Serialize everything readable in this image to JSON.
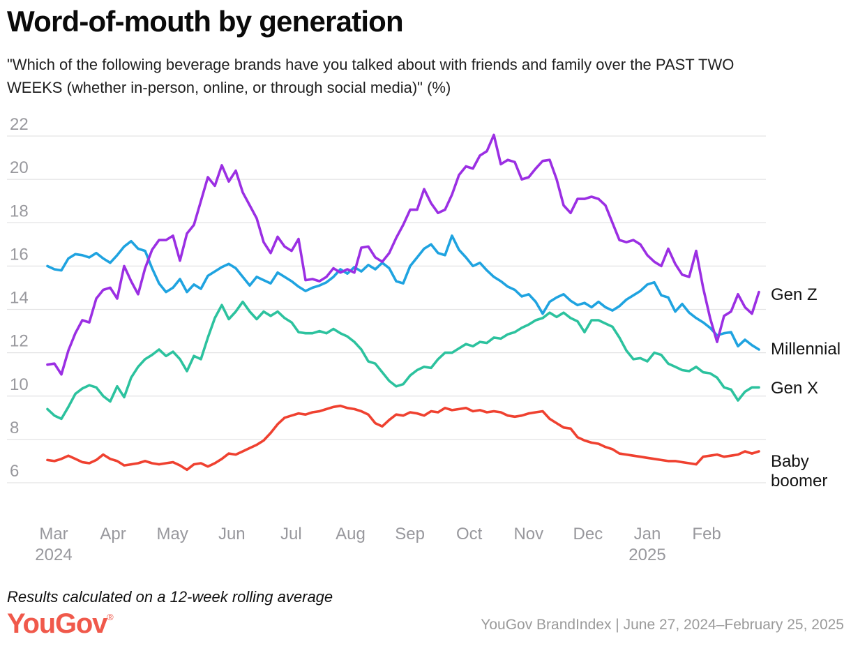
{
  "header": {
    "title": "Word-of-mouth by generation",
    "subtitle_line1": "\"Which of the following beverage brands have you talked about with friends and family over the PAST TWO",
    "subtitle_line2": "WEEKS (whether in-person, online, or through social media)\" (%)"
  },
  "chart_data": {
    "type": "line",
    "unit": "%",
    "grid": true,
    "legend_position": "right-edge-labels",
    "ylim": [
      6,
      22
    ],
    "yticks": [
      6,
      8,
      10,
      12,
      14,
      16,
      18,
      20,
      22
    ],
    "x_axis": {
      "ticks": [
        {
          "label": "Mar",
          "sublabel": "2024"
        },
        {
          "label": "Apr",
          "sublabel": ""
        },
        {
          "label": "May",
          "sublabel": ""
        },
        {
          "label": "Jun",
          "sublabel": ""
        },
        {
          "label": "Jul",
          "sublabel": ""
        },
        {
          "label": "Aug",
          "sublabel": ""
        },
        {
          "label": "Sep",
          "sublabel": ""
        },
        {
          "label": "Oct",
          "sublabel": ""
        },
        {
          "label": "Nov",
          "sublabel": ""
        },
        {
          "label": "Dec",
          "sublabel": ""
        },
        {
          "label": "Jan",
          "sublabel": "2025"
        },
        {
          "label": "Feb",
          "sublabel": ""
        }
      ]
    },
    "series": [
      {
        "name": "Gen Z",
        "color": "#9b2fe3",
        "values": [
          11.45,
          11.5,
          11.0,
          12.1,
          12.9,
          13.5,
          13.4,
          14.5,
          14.9,
          15.0,
          14.5,
          16.0,
          15.3,
          14.7,
          15.9,
          16.75,
          17.2,
          17.2,
          17.4,
          16.25,
          17.5,
          17.9,
          19.0,
          20.1,
          19.7,
          20.65,
          19.9,
          20.4,
          19.4,
          18.8,
          18.2,
          17.1,
          16.6,
          17.35,
          16.9,
          16.7,
          17.25,
          15.35,
          15.4,
          15.3,
          15.5,
          15.9,
          15.7,
          15.85,
          15.7,
          16.85,
          16.9,
          16.4,
          16.2,
          16.6,
          17.3,
          17.9,
          18.6,
          18.6,
          19.55,
          18.9,
          18.45,
          18.6,
          19.3,
          20.2,
          20.6,
          20.5,
          21.1,
          21.3,
          22.05,
          20.7,
          20.9,
          20.8,
          20.0,
          20.1,
          20.5,
          20.85,
          20.9,
          20.0,
          18.8,
          18.45,
          19.1,
          19.1,
          19.2,
          19.1,
          18.8,
          18.0,
          17.2,
          17.1,
          17.2,
          17.0,
          16.5,
          16.2,
          16.0,
          16.8,
          16.1,
          15.6,
          15.5,
          16.7,
          15.0,
          13.6,
          12.5,
          13.7,
          13.9,
          14.7,
          14.1,
          13.8,
          14.8
        ]
      },
      {
        "name": "Millennial",
        "color": "#1fa3e0",
        "values": [
          16.0,
          15.85,
          15.8,
          16.35,
          16.55,
          16.5,
          16.4,
          16.6,
          16.35,
          16.15,
          16.5,
          16.9,
          17.15,
          16.8,
          16.7,
          15.9,
          15.2,
          14.8,
          15.0,
          15.4,
          14.8,
          15.15,
          14.95,
          15.55,
          15.75,
          15.95,
          16.1,
          15.9,
          15.5,
          15.1,
          15.5,
          15.35,
          15.2,
          15.7,
          15.5,
          15.3,
          15.05,
          14.85,
          15.0,
          15.1,
          15.25,
          15.5,
          15.85,
          15.65,
          15.95,
          15.75,
          16.05,
          15.85,
          16.15,
          15.9,
          15.3,
          15.2,
          16.0,
          16.4,
          16.8,
          17.0,
          16.6,
          16.5,
          17.4,
          16.75,
          16.4,
          16.0,
          16.15,
          15.8,
          15.5,
          15.3,
          15.05,
          14.9,
          14.6,
          14.7,
          14.35,
          13.8,
          14.35,
          14.55,
          14.7,
          14.4,
          14.2,
          14.3,
          14.1,
          14.35,
          14.1,
          13.95,
          14.15,
          14.45,
          14.65,
          14.85,
          15.15,
          15.25,
          14.65,
          14.55,
          13.9,
          14.25,
          13.85,
          13.6,
          13.4,
          13.15,
          12.8,
          12.9,
          12.95,
          12.3,
          12.6,
          12.35,
          12.15
        ]
      },
      {
        "name": "Gen X",
        "color": "#2cc29e",
        "values": [
          9.4,
          9.1,
          8.95,
          9.5,
          10.1,
          10.35,
          10.5,
          10.4,
          10.0,
          9.75,
          10.45,
          9.95,
          10.85,
          11.35,
          11.7,
          11.9,
          12.15,
          11.85,
          12.05,
          11.7,
          11.15,
          11.85,
          11.7,
          12.7,
          13.6,
          14.2,
          13.55,
          13.9,
          14.35,
          13.9,
          13.55,
          13.9,
          13.7,
          13.9,
          13.6,
          13.4,
          12.95,
          12.9,
          12.9,
          13.0,
          12.9,
          13.1,
          12.9,
          12.75,
          12.5,
          12.15,
          11.6,
          11.5,
          11.1,
          10.7,
          10.45,
          10.55,
          10.95,
          11.2,
          11.35,
          11.3,
          11.7,
          12.0,
          12.0,
          12.2,
          12.4,
          12.3,
          12.5,
          12.45,
          12.7,
          12.65,
          12.85,
          12.95,
          13.15,
          13.3,
          13.5,
          13.6,
          13.85,
          13.65,
          13.85,
          13.6,
          13.45,
          12.95,
          13.5,
          13.5,
          13.35,
          13.2,
          12.7,
          12.1,
          11.7,
          11.75,
          11.6,
          12.0,
          11.9,
          11.5,
          11.35,
          11.2,
          11.15,
          11.35,
          11.1,
          11.05,
          10.85,
          10.4,
          10.3,
          9.8,
          10.2,
          10.4,
          10.4
        ]
      },
      {
        "name": "Baby boomer",
        "color": "#ef4130",
        "values": [
          7.05,
          7.0,
          7.1,
          7.25,
          7.1,
          6.95,
          6.9,
          7.05,
          7.3,
          7.1,
          7.0,
          6.8,
          6.85,
          6.9,
          7.0,
          6.9,
          6.85,
          6.9,
          6.95,
          6.8,
          6.6,
          6.85,
          6.9,
          6.75,
          6.9,
          7.1,
          7.35,
          7.3,
          7.45,
          7.6,
          7.75,
          7.95,
          8.3,
          8.7,
          9.0,
          9.1,
          9.2,
          9.15,
          9.25,
          9.3,
          9.4,
          9.5,
          9.55,
          9.45,
          9.4,
          9.3,
          9.15,
          8.75,
          8.6,
          8.9,
          9.15,
          9.1,
          9.25,
          9.2,
          9.1,
          9.3,
          9.25,
          9.45,
          9.35,
          9.4,
          9.45,
          9.3,
          9.35,
          9.25,
          9.3,
          9.25,
          9.1,
          9.05,
          9.1,
          9.2,
          9.25,
          9.3,
          8.95,
          8.75,
          8.55,
          8.5,
          8.1,
          7.95,
          7.85,
          7.8,
          7.65,
          7.55,
          7.35,
          7.3,
          7.25,
          7.2,
          7.15,
          7.1,
          7.05,
          7.0,
          7.0,
          6.95,
          6.9,
          6.85,
          7.2,
          7.25,
          7.3,
          7.2,
          7.25,
          7.3,
          7.45,
          7.35,
          7.45
        ]
      }
    ],
    "colors": {
      "grid": "#e3e3e4",
      "axis_label": "#98989d"
    }
  },
  "footer": {
    "note": "Results calculated on a 12-week rolling average",
    "logo_text": "YouGov",
    "logo_reg": "®",
    "attribution": "YouGov BrandIndex | June 27, 2024–February 25, 2025"
  }
}
